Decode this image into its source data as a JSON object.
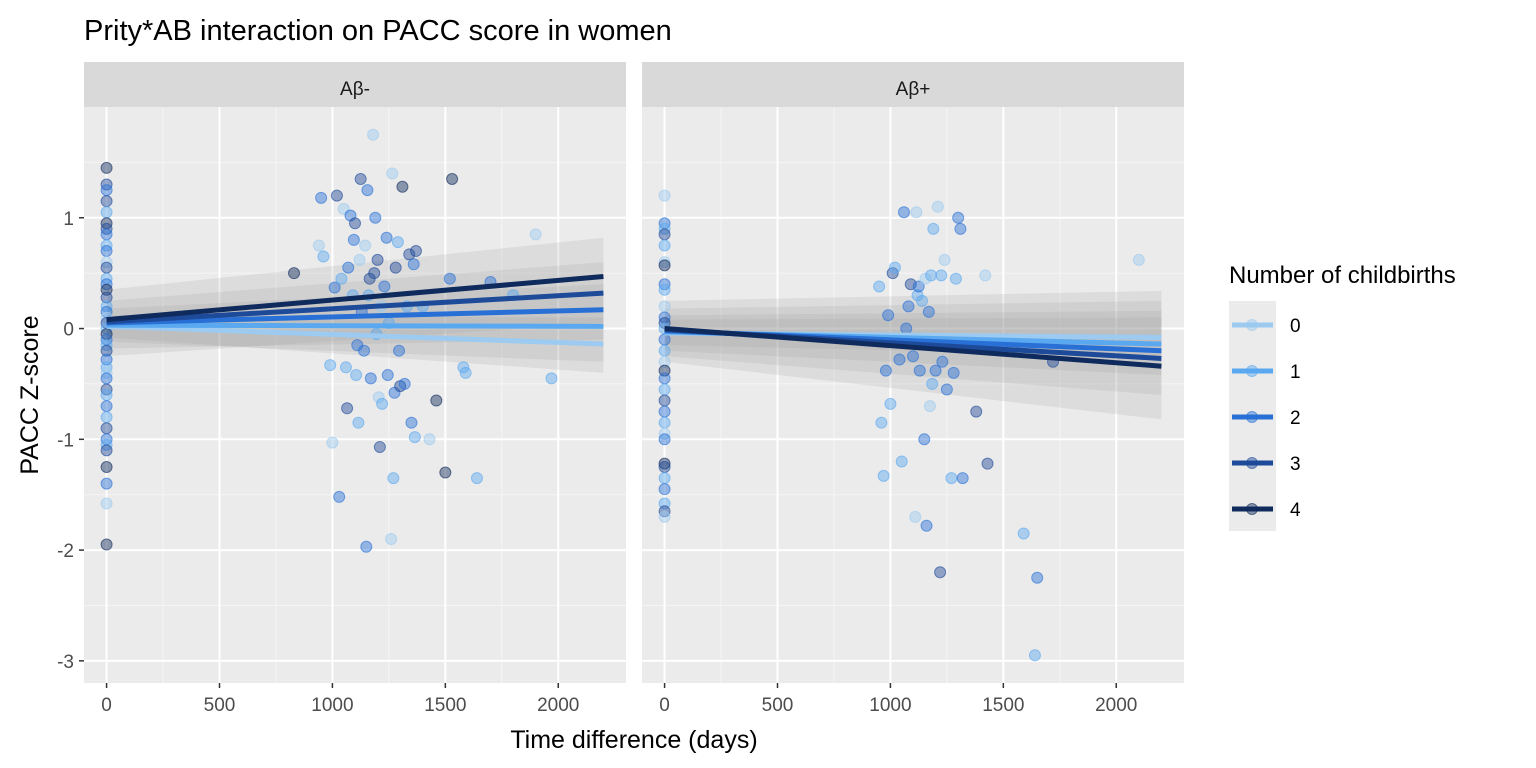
{
  "chart_data": {
    "type": "scatter",
    "title": "Prity*AB interaction on PACC score in women",
    "xlabel": "Time difference (days)",
    "ylabel": "PACC Z-score",
    "xlim": [
      -100,
      2300
    ],
    "ylim": [
      -3.2,
      2.0
    ],
    "x_ticks": [
      0,
      500,
      1000,
      1500,
      2000
    ],
    "y_ticks": [
      -3,
      -2,
      -1,
      0,
      1
    ],
    "grid": true,
    "legend_position": "right",
    "legend": {
      "title": "Number of childbirths",
      "entries": [
        "0",
        "1",
        "2",
        "3",
        "4"
      ],
      "colors": [
        "#9ccaf0",
        "#5aa9f0",
        "#2870d6",
        "#1e4a9a",
        "#0f2a5c"
      ]
    },
    "panels": [
      {
        "label": "Aβ-",
        "fit_lines": [
          {
            "group": "0",
            "x": [
              0,
              2200
            ],
            "y": [
              0.02,
              -0.14
            ]
          },
          {
            "group": "1",
            "x": [
              0,
              2200
            ],
            "y": [
              0.03,
              0.02
            ]
          },
          {
            "group": "2",
            "x": [
              0,
              2200
            ],
            "y": [
              0.05,
              0.17
            ]
          },
          {
            "group": "3",
            "x": [
              0,
              2200
            ],
            "y": [
              0.06,
              0.32
            ]
          },
          {
            "group": "4",
            "x": [
              0,
              2200
            ],
            "y": [
              0.08,
              0.47
            ]
          }
        ],
        "ci_bands": [
          {
            "x": [
              0,
              2200
            ],
            "lower": [
              -0.08,
              -0.4
            ],
            "upper": [
              0.12,
              0.1
            ]
          },
          {
            "x": [
              0,
              2200
            ],
            "lower": [
              -0.12,
              -0.3
            ],
            "upper": [
              0.18,
              0.4
            ]
          },
          {
            "x": [
              0,
              2200
            ],
            "lower": [
              -0.18,
              -0.1
            ],
            "upper": [
              0.25,
              0.6
            ]
          },
          {
            "x": [
              0,
              2200
            ],
            "lower": [
              -0.25,
              0.05
            ],
            "upper": [
              0.35,
              0.82
            ]
          }
        ],
        "points": [
          [
            0,
            1.45,
            4
          ],
          [
            0,
            1.3,
            3
          ],
          [
            0,
            1.25,
            2
          ],
          [
            0,
            1.15,
            3
          ],
          [
            0,
            1.05,
            1
          ],
          [
            0,
            0.95,
            4
          ],
          [
            0,
            0.9,
            3
          ],
          [
            0,
            0.85,
            2
          ],
          [
            0,
            0.75,
            1
          ],
          [
            0,
            0.7,
            2
          ],
          [
            0,
            0.6,
            0
          ],
          [
            0,
            0.55,
            3
          ],
          [
            0,
            0.45,
            1
          ],
          [
            0,
            0.4,
            2
          ],
          [
            0,
            0.35,
            4
          ],
          [
            0,
            0.28,
            3
          ],
          [
            0,
            0.2,
            1
          ],
          [
            0,
            0.15,
            2
          ],
          [
            0,
            0.1,
            0
          ],
          [
            0,
            0.05,
            3
          ],
          [
            0,
            0.0,
            1
          ],
          [
            0,
            -0.05,
            4
          ],
          [
            0,
            -0.1,
            2
          ],
          [
            0,
            -0.15,
            1
          ],
          [
            0,
            -0.2,
            3
          ],
          [
            0,
            -0.28,
            2
          ],
          [
            0,
            -0.35,
            1
          ],
          [
            0,
            -0.4,
            0
          ],
          [
            0,
            -0.45,
            2
          ],
          [
            0,
            -0.55,
            3
          ],
          [
            0,
            -0.6,
            1
          ],
          [
            0,
            -0.7,
            2
          ],
          [
            0,
            -0.8,
            1
          ],
          [
            0,
            -0.9,
            3
          ],
          [
            0,
            -1.0,
            2
          ],
          [
            0,
            -1.05,
            1
          ],
          [
            0,
            -1.1,
            3
          ],
          [
            0,
            -1.25,
            4
          ],
          [
            0,
            -1.4,
            2
          ],
          [
            0,
            -1.58,
            0
          ],
          [
            0,
            -1.95,
            4
          ],
          [
            830,
            0.5,
            4
          ],
          [
            940,
            0.75,
            0
          ],
          [
            950,
            1.18,
            2
          ],
          [
            960,
            0.65,
            1
          ],
          [
            990,
            -0.33,
            1
          ],
          [
            1000,
            -1.03,
            0
          ],
          [
            1010,
            0.37,
            2
          ],
          [
            1020,
            1.2,
            3
          ],
          [
            1030,
            -1.52,
            2
          ],
          [
            1040,
            0.45,
            1
          ],
          [
            1050,
            1.08,
            0
          ],
          [
            1060,
            -0.35,
            1
          ],
          [
            1065,
            -0.72,
            3
          ],
          [
            1070,
            0.55,
            2
          ],
          [
            1080,
            1.02,
            2
          ],
          [
            1090,
            0.3,
            1
          ],
          [
            1095,
            0.8,
            2
          ],
          [
            1100,
            0.95,
            3
          ],
          [
            1105,
            -0.42,
            1
          ],
          [
            1110,
            -0.15,
            2
          ],
          [
            1115,
            -0.85,
            1
          ],
          [
            1120,
            0.62,
            0
          ],
          [
            1125,
            1.35,
            3
          ],
          [
            1130,
            0.15,
            2
          ],
          [
            1140,
            -0.2,
            2
          ],
          [
            1145,
            0.75,
            0
          ],
          [
            1150,
            -1.97,
            2
          ],
          [
            1155,
            1.25,
            2
          ],
          [
            1160,
            0.3,
            1
          ],
          [
            1165,
            0.45,
            3
          ],
          [
            1170,
            -0.45,
            2
          ],
          [
            1180,
            1.75,
            0
          ],
          [
            1185,
            0.5,
            3
          ],
          [
            1190,
            1.0,
            2
          ],
          [
            1195,
            -0.05,
            1
          ],
          [
            1200,
            0.62,
            3
          ],
          [
            1205,
            -0.62,
            0
          ],
          [
            1210,
            -1.07,
            3
          ],
          [
            1215,
            0.2,
            0
          ],
          [
            1220,
            -0.68,
            1
          ],
          [
            1230,
            0.38,
            2
          ],
          [
            1240,
            0.82,
            2
          ],
          [
            1245,
            -0.42,
            2
          ],
          [
            1250,
            0.05,
            1
          ],
          [
            1260,
            -1.9,
            0
          ],
          [
            1265,
            1.4,
            0
          ],
          [
            1270,
            -1.35,
            1
          ],
          [
            1275,
            -0.58,
            2
          ],
          [
            1280,
            0.55,
            3
          ],
          [
            1290,
            0.78,
            1
          ],
          [
            1295,
            -0.2,
            2
          ],
          [
            1300,
            -0.52,
            3
          ],
          [
            1310,
            1.28,
            4
          ],
          [
            1320,
            -0.5,
            2
          ],
          [
            1330,
            0.2,
            1
          ],
          [
            1340,
            0.67,
            3
          ],
          [
            1350,
            -0.85,
            2
          ],
          [
            1360,
            0.58,
            2
          ],
          [
            1365,
            -0.98,
            1
          ],
          [
            1370,
            0.7,
            3
          ],
          [
            1400,
            0.2,
            1
          ],
          [
            1430,
            -1.0,
            0
          ],
          [
            1460,
            -0.65,
            4
          ],
          [
            1500,
            -1.3,
            4
          ],
          [
            1520,
            0.45,
            2
          ],
          [
            1530,
            1.35,
            4
          ],
          [
            1580,
            -0.35,
            1
          ],
          [
            1590,
            -0.4,
            1
          ],
          [
            1640,
            -1.35,
            1
          ],
          [
            1700,
            0.42,
            2
          ],
          [
            1800,
            0.3,
            1
          ],
          [
            1900,
            0.85,
            0
          ],
          [
            1970,
            -0.45,
            1
          ]
        ]
      },
      {
        "label": "Aβ+",
        "fit_lines": [
          {
            "group": "0",
            "x": [
              0,
              2200
            ],
            "y": [
              -0.04,
              -0.08
            ]
          },
          {
            "group": "1",
            "x": [
              0,
              2200
            ],
            "y": [
              -0.03,
              -0.14
            ]
          },
          {
            "group": "2",
            "x": [
              0,
              2200
            ],
            "y": [
              -0.02,
              -0.2
            ]
          },
          {
            "group": "3",
            "x": [
              0,
              2200
            ],
            "y": [
              -0.01,
              -0.27
            ]
          },
          {
            "group": "4",
            "x": [
              0,
              2200
            ],
            "y": [
              0.0,
              -0.34
            ]
          }
        ],
        "ci_bands": [
          {
            "x": [
              0,
              2200
            ],
            "lower": [
              -0.15,
              -0.25
            ],
            "upper": [
              0.08,
              0.1
            ]
          },
          {
            "x": [
              0,
              2200
            ],
            "lower": [
              -0.2,
              -0.42
            ],
            "upper": [
              0.12,
              0.16
            ]
          },
          {
            "x": [
              0,
              2200
            ],
            "lower": [
              -0.25,
              -0.6
            ],
            "upper": [
              0.18,
              0.25
            ]
          },
          {
            "x": [
              0,
              2200
            ],
            "lower": [
              -0.3,
              -0.82
            ],
            "upper": [
              0.25,
              0.34
            ]
          }
        ],
        "points": [
          [
            0,
            1.2,
            0
          ],
          [
            0,
            0.95,
            2
          ],
          [
            0,
            0.9,
            1
          ],
          [
            0,
            0.85,
            3
          ],
          [
            0,
            0.75,
            1
          ],
          [
            0,
            0.6,
            0
          ],
          [
            0,
            0.57,
            4
          ],
          [
            0,
            0.4,
            2
          ],
          [
            0,
            0.35,
            1
          ],
          [
            0,
            0.2,
            0
          ],
          [
            0,
            0.1,
            2
          ],
          [
            0,
            0.05,
            3
          ],
          [
            0,
            0.0,
            1
          ],
          [
            0,
            -0.1,
            2
          ],
          [
            0,
            -0.2,
            1
          ],
          [
            0,
            -0.3,
            0
          ],
          [
            0,
            -0.38,
            4
          ],
          [
            0,
            -0.45,
            2
          ],
          [
            0,
            -0.55,
            1
          ],
          [
            0,
            -0.65,
            3
          ],
          [
            0,
            -0.75,
            2
          ],
          [
            0,
            -0.85,
            1
          ],
          [
            0,
            -0.95,
            0
          ],
          [
            0,
            -1.0,
            2
          ],
          [
            0,
            -1.22,
            4
          ],
          [
            0,
            -1.25,
            3
          ],
          [
            0,
            -1.35,
            1
          ],
          [
            0,
            -1.45,
            2
          ],
          [
            0,
            -1.58,
            1
          ],
          [
            0,
            -1.65,
            3
          ],
          [
            0,
            -1.7,
            0
          ],
          [
            950,
            0.38,
            1
          ],
          [
            960,
            -0.85,
            1
          ],
          [
            970,
            -1.33,
            1
          ],
          [
            980,
            -0.38,
            2
          ],
          [
            990,
            0.12,
            2
          ],
          [
            1000,
            -0.68,
            1
          ],
          [
            1010,
            0.5,
            3
          ],
          [
            1020,
            0.55,
            1
          ],
          [
            1040,
            -0.28,
            2
          ],
          [
            1050,
            -1.2,
            1
          ],
          [
            1060,
            1.05,
            2
          ],
          [
            1070,
            0.0,
            2
          ],
          [
            1080,
            0.2,
            2
          ],
          [
            1090,
            0.4,
            3
          ],
          [
            1100,
            -0.25,
            2
          ],
          [
            1110,
            -1.7,
            0
          ],
          [
            1115,
            1.05,
            0
          ],
          [
            1120,
            0.3,
            1
          ],
          [
            1125,
            0.38,
            2
          ],
          [
            1130,
            -0.38,
            2
          ],
          [
            1140,
            0.25,
            1
          ],
          [
            1150,
            -1.0,
            2
          ],
          [
            1155,
            0.45,
            0
          ],
          [
            1160,
            -1.78,
            2
          ],
          [
            1170,
            0.15,
            2
          ],
          [
            1175,
            -0.7,
            0
          ],
          [
            1180,
            0.48,
            1
          ],
          [
            1185,
            -0.5,
            1
          ],
          [
            1190,
            0.9,
            1
          ],
          [
            1200,
            -0.38,
            2
          ],
          [
            1210,
            1.1,
            0
          ],
          [
            1220,
            -2.2,
            3
          ],
          [
            1225,
            0.48,
            1
          ],
          [
            1230,
            -0.3,
            2
          ],
          [
            1240,
            0.62,
            0
          ],
          [
            1250,
            -0.55,
            2
          ],
          [
            1270,
            -1.35,
            1
          ],
          [
            1280,
            -0.4,
            2
          ],
          [
            1290,
            0.45,
            1
          ],
          [
            1300,
            1.0,
            2
          ],
          [
            1310,
            0.9,
            2
          ],
          [
            1320,
            -1.35,
            2
          ],
          [
            1380,
            -0.75,
            3
          ],
          [
            1420,
            0.48,
            0
          ],
          [
            1430,
            -1.22,
            3
          ],
          [
            1590,
            -1.85,
            1
          ],
          [
            1650,
            -2.25,
            2
          ],
          [
            1640,
            -2.95,
            1
          ],
          [
            1720,
            -0.3,
            3
          ],
          [
            2100,
            0.62,
            0
          ]
        ]
      }
    ]
  }
}
